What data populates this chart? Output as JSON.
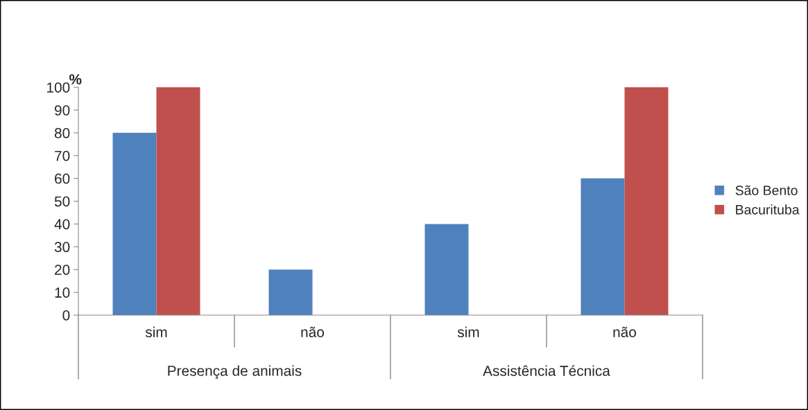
{
  "chart_data": {
    "type": "bar",
    "ylabel": "%",
    "categories": [
      "sim",
      "não",
      "sim",
      "não"
    ],
    "series": [
      {
        "name": "São Bento",
        "color": "#4f81bd",
        "values": [
          80,
          20,
          40,
          60
        ]
      },
      {
        "name": "Bacurituba",
        "color": "#c0504d",
        "values": [
          100,
          0,
          0,
          100
        ]
      }
    ],
    "annotations": [
      "Presença de animais",
      "Assistência Técnica"
    ],
    "ylim": [
      0,
      100
    ],
    "yticks": [
      0,
      10,
      20,
      30,
      40,
      50,
      60,
      70,
      80,
      90,
      100
    ],
    "grid": false,
    "legend": "right"
  }
}
